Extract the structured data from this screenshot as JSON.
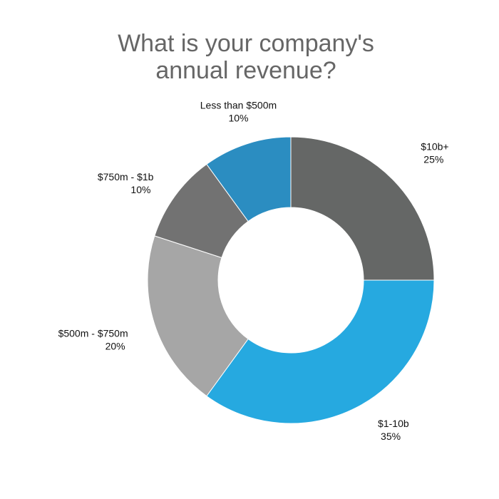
{
  "chart_data": {
    "type": "pie",
    "variant": "donut",
    "title_lines": [
      "What is your company's",
      "annual revenue?"
    ],
    "start": "top",
    "direction": "clockwise",
    "slices": [
      {
        "label": "$10b+",
        "value": 25,
        "value_label": "25%",
        "color": "#656766"
      },
      {
        "label": "$1-10b",
        "value": 35,
        "value_label": "35%",
        "color": "#26a9e0"
      },
      {
        "label": "$500m - $750m",
        "value": 20,
        "value_label": "20%",
        "color": "#a6a6a6"
      },
      {
        "label": "$750m - $1b",
        "value": 10,
        "value_label": "10%",
        "color": "#727272"
      },
      {
        "label": "Less than $500m",
        "value": 10,
        "value_label": "10%",
        "color": "#2b8dc1"
      }
    ],
    "legend": "none"
  }
}
